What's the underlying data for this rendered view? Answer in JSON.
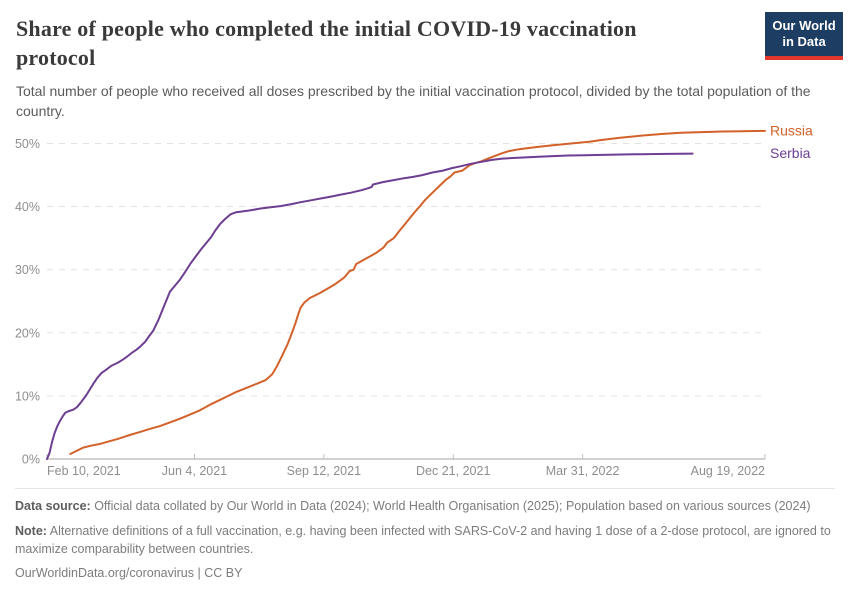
{
  "header": {
    "title": "Share of people who completed the initial COVID-19 vaccination protocol",
    "subtitle": "Total number of people who received all doses prescribed by the initial vaccination protocol, divided by the total population of the country.",
    "logo": {
      "line1": "Our World",
      "line2": "in Data",
      "bg": "#1d3d63",
      "accent": "#e0362c"
    }
  },
  "chart_data": {
    "type": "line",
    "title": "Share of people who completed the initial COVID-19 vaccination protocol",
    "xlabel": "",
    "ylabel": "",
    "x_unit": "days since 2021-02-10",
    "ylim": [
      0,
      52
    ],
    "grid": "dashed-horizontal",
    "legend_position": "right-of-line-end",
    "yticks": [
      {
        "value": 0,
        "label": "0%"
      },
      {
        "value": 10,
        "label": "10%"
      },
      {
        "value": 20,
        "label": "20%"
      },
      {
        "value": 30,
        "label": "30%"
      },
      {
        "value": 40,
        "label": "40%"
      },
      {
        "value": 50,
        "label": "50%"
      }
    ],
    "x_ticks": [
      {
        "day": 0,
        "label": "Feb 10, 2021"
      },
      {
        "day": 114,
        "label": "Jun 4, 2021"
      },
      {
        "day": 214,
        "label": "Sep 12, 2021"
      },
      {
        "day": 314,
        "label": "Dec 21, 2021"
      },
      {
        "day": 414,
        "label": "Mar 31, 2022"
      },
      {
        "day": 555,
        "label": "Aug 19, 2022"
      }
    ],
    "series": [
      {
        "name": "Russia",
        "color": "#d2622a",
        "points": [
          [
            18,
            0.8
          ],
          [
            22,
            1.2
          ],
          [
            28,
            1.8
          ],
          [
            34,
            2.1
          ],
          [
            41,
            2.4
          ],
          [
            48,
            2.8
          ],
          [
            55,
            3.2
          ],
          [
            64,
            3.8
          ],
          [
            72,
            4.3
          ],
          [
            80,
            4.8
          ],
          [
            87,
            5.2
          ],
          [
            95,
            5.8
          ],
          [
            103,
            6.4
          ],
          [
            110,
            7.0
          ],
          [
            118,
            7.7
          ],
          [
            126,
            8.6
          ],
          [
            134,
            9.4
          ],
          [
            140,
            10.0
          ],
          [
            146,
            10.6
          ],
          [
            151,
            11.0
          ],
          [
            157,
            11.5
          ],
          [
            163,
            12.0
          ],
          [
            169,
            12.5
          ],
          [
            174,
            13.4
          ],
          [
            178,
            14.8
          ],
          [
            182,
            16.5
          ],
          [
            186,
            18.2
          ],
          [
            189,
            19.8
          ],
          [
            192,
            21.5
          ],
          [
            194,
            22.8
          ],
          [
            196,
            24.0
          ],
          [
            199,
            24.8
          ],
          [
            203,
            25.5
          ],
          [
            211,
            26.3
          ],
          [
            222,
            27.6
          ],
          [
            230,
            28.8
          ],
          [
            234,
            29.8
          ],
          [
            237,
            30.0
          ],
          [
            239,
            30.9
          ],
          [
            246,
            31.7
          ],
          [
            254,
            32.6
          ],
          [
            260,
            33.5
          ],
          [
            263,
            34.3
          ],
          [
            268,
            35.0
          ],
          [
            273,
            36.3
          ],
          [
            277,
            37.3
          ],
          [
            281,
            38.3
          ],
          [
            285,
            39.3
          ],
          [
            288,
            40.0
          ],
          [
            292,
            41.0
          ],
          [
            296,
            41.8
          ],
          [
            300,
            42.6
          ],
          [
            304,
            43.4
          ],
          [
            308,
            44.2
          ],
          [
            312,
            44.8
          ],
          [
            315,
            45.4
          ],
          [
            321,
            45.7
          ],
          [
            327,
            46.6
          ],
          [
            331,
            46.9
          ],
          [
            336,
            47.2
          ],
          [
            341,
            47.6
          ],
          [
            346,
            48.0
          ],
          [
            351,
            48.4
          ],
          [
            357,
            48.8
          ],
          [
            365,
            49.1
          ],
          [
            377,
            49.4
          ],
          [
            390,
            49.7
          ],
          [
            400,
            49.9
          ],
          [
            410,
            50.1
          ],
          [
            420,
            50.3
          ],
          [
            427,
            50.5
          ],
          [
            434,
            50.7
          ],
          [
            443,
            50.9
          ],
          [
            452,
            51.1
          ],
          [
            463,
            51.3
          ],
          [
            475,
            51.5
          ],
          [
            490,
            51.7
          ],
          [
            506,
            51.8
          ],
          [
            522,
            51.9
          ],
          [
            537,
            51.95
          ],
          [
            555,
            52.0
          ]
        ]
      },
      {
        "name": "Serbia",
        "color": "#6d3e91",
        "points": [
          [
            0,
            0
          ],
          [
            2,
            1.0
          ],
          [
            4,
            2.8
          ],
          [
            6,
            4.2
          ],
          [
            8,
            5.2
          ],
          [
            10,
            6.0
          ],
          [
            12,
            6.7
          ],
          [
            14,
            7.3
          ],
          [
            17,
            7.6
          ],
          [
            20,
            7.8
          ],
          [
            23,
            8.2
          ],
          [
            26,
            8.9
          ],
          [
            30,
            10.0
          ],
          [
            33,
            11.0
          ],
          [
            36,
            12.0
          ],
          [
            39,
            12.9
          ],
          [
            42,
            13.6
          ],
          [
            46,
            14.2
          ],
          [
            50,
            14.8
          ],
          [
            55,
            15.3
          ],
          [
            59,
            15.8
          ],
          [
            63,
            16.4
          ],
          [
            66,
            16.9
          ],
          [
            69,
            17.3
          ],
          [
            72,
            17.8
          ],
          [
            76,
            18.6
          ],
          [
            79,
            19.5
          ],
          [
            82,
            20.3
          ],
          [
            86,
            22.0
          ],
          [
            90,
            24.0
          ],
          [
            95,
            26.5
          ],
          [
            99,
            27.5
          ],
          [
            103,
            28.5
          ],
          [
            107,
            29.7
          ],
          [
            111,
            31.0
          ],
          [
            115,
            32.1
          ],
          [
            119,
            33.2
          ],
          [
            123,
            34.2
          ],
          [
            127,
            35.2
          ],
          [
            130,
            36.2
          ],
          [
            134,
            37.3
          ],
          [
            138,
            38.1
          ],
          [
            142,
            38.8
          ],
          [
            146,
            39.1
          ],
          [
            150,
            39.2
          ],
          [
            157,
            39.4
          ],
          [
            165,
            39.7
          ],
          [
            173,
            39.9
          ],
          [
            181,
            40.1
          ],
          [
            189,
            40.4
          ],
          [
            196,
            40.7
          ],
          [
            204,
            41.0
          ],
          [
            212,
            41.3
          ],
          [
            220,
            41.6
          ],
          [
            227,
            41.9
          ],
          [
            235,
            42.2
          ],
          [
            243,
            42.6
          ],
          [
            248,
            42.9
          ],
          [
            251,
            43.1
          ],
          [
            252,
            43.5
          ],
          [
            260,
            43.9
          ],
          [
            268,
            44.2
          ],
          [
            276,
            44.5
          ],
          [
            283,
            44.7
          ],
          [
            290,
            45.0
          ],
          [
            298,
            45.4
          ],
          [
            306,
            45.7
          ],
          [
            313,
            46.1
          ],
          [
            320,
            46.4
          ],
          [
            328,
            46.8
          ],
          [
            336,
            47.1
          ],
          [
            344,
            47.4
          ],
          [
            352,
            47.6
          ],
          [
            360,
            47.7
          ],
          [
            370,
            47.8
          ],
          [
            380,
            47.9
          ],
          [
            391,
            48.0
          ],
          [
            403,
            48.1
          ],
          [
            416,
            48.15
          ],
          [
            429,
            48.2
          ],
          [
            444,
            48.25
          ],
          [
            459,
            48.3
          ],
          [
            479,
            48.35
          ],
          [
            499,
            48.4
          ]
        ]
      }
    ]
  },
  "footer": {
    "data_source_label": "Data source:",
    "data_source_text": " Official data collated by Our World in Data (2024); World Health Organisation (2025); Population based on various sources (2024)",
    "note_label": "Note:",
    "note_text": " Alternative definitions of a full vaccination, e.g. having been infected with SARS-CoV-2 and having 1 dose of a 2-dose protocol, are ignored to maximize comparability between countries.",
    "link": "OurWorldinData.org/coronavirus",
    "separator": "|",
    "license": "CC BY"
  }
}
